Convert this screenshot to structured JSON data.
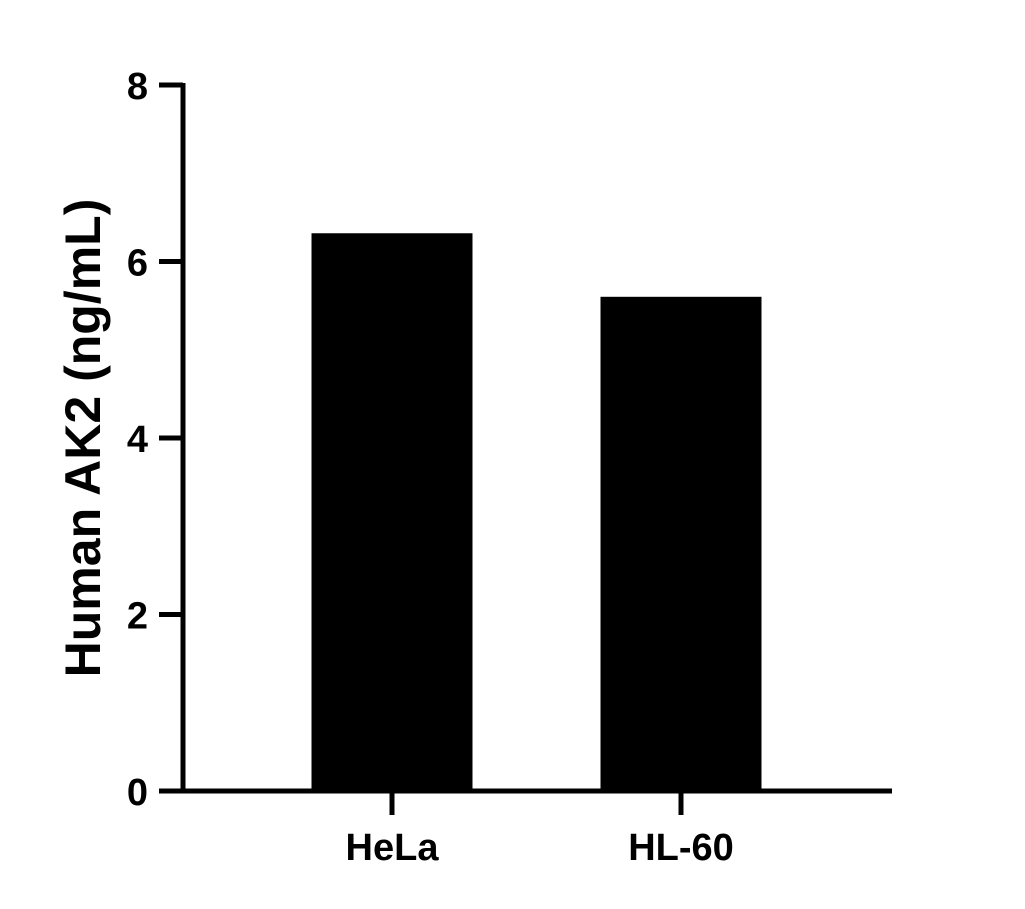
{
  "chart_data": {
    "type": "bar",
    "title": "",
    "xlabel": "",
    "ylabel": "Human AK2 (ng/mL)",
    "categories": [
      "HeLa",
      "HL-60"
    ],
    "values": [
      6.32,
      5.6
    ],
    "ylim": [
      0,
      8
    ],
    "yticks": [
      0,
      2,
      4,
      6,
      8
    ],
    "grid": false,
    "bar_color": "#000000"
  }
}
